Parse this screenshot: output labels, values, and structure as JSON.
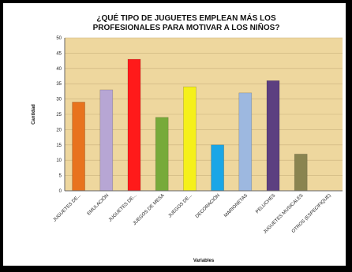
{
  "chart_data": {
    "type": "bar",
    "title": [
      "¿QUÉ TIPO DE JUGUETES EMPLEAN MÁS LOS",
      "PROFESIONALES PARA MOTIVAR A LOS NIÑOS?"
    ],
    "xlabel": "Variables",
    "ylabel": "Cantidad",
    "ylim": [
      0,
      50
    ],
    "yticks": [
      0,
      5,
      10,
      15,
      20,
      25,
      30,
      35,
      40,
      45,
      50
    ],
    "categories": [
      "JUGUETES DE...",
      "EMULACIÓN",
      "JUGUETES DE...",
      "JUEGOS DE MESA",
      "JUEGOS DE...",
      "DECORACIÓN",
      "MARIONETAS",
      "PELUCHES",
      "JUGUETES MUSICALES",
      "OTROS (ESPECIFIQUE)"
    ],
    "values": [
      29,
      33,
      43,
      24,
      34,
      15,
      32,
      36,
      12,
      0
    ],
    "colors": [
      "#e8731e",
      "#b7a6d4",
      "#ff1a1a",
      "#77aa3a",
      "#f5f01a",
      "#1aa6e6",
      "#9db8e0",
      "#5c3f80",
      "#8a8450",
      "#cccccc"
    ],
    "plot_background": "#eed79e",
    "grid": true,
    "legend": "none"
  }
}
